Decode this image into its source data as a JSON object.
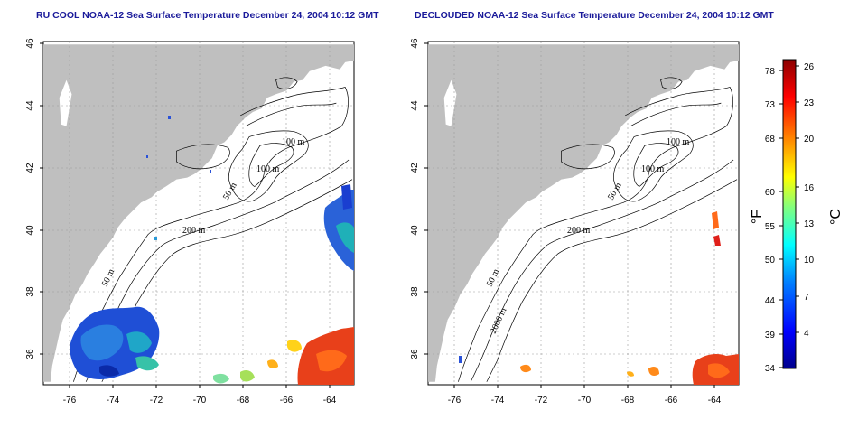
{
  "maps": [
    {
      "title": "RU COOL NOAA-12 Sea Surface Temperature December 24, 2004 10:12 GMT",
      "lat_ticks": [
        "46",
        "44",
        "42",
        "40",
        "38",
        "36"
      ],
      "lon_ticks": [
        "-76",
        "-74",
        "-72",
        "-70",
        "-68",
        "-66",
        "-64"
      ],
      "contour_labels": [
        "100 m",
        "100 m",
        "50 m",
        "200 m",
        "50 m"
      ]
    },
    {
      "title": "DECLOUDED NOAA-12 Sea Surface Temperature December 24, 2004 10:12 GMT",
      "lat_ticks": [
        "46",
        "44",
        "42",
        "40",
        "38",
        "36"
      ],
      "lon_ticks": [
        "-76",
        "-74",
        "-72",
        "-70",
        "-68",
        "-66",
        "-64"
      ],
      "contour_labels": [
        "100 m",
        "100 m",
        "50 m",
        "200 m",
        "50 m",
        "2000 m"
      ]
    }
  ],
  "colorbar": {
    "fahrenheit_ticks": [
      "78",
      "73",
      "68",
      "60",
      "55",
      "50",
      "44",
      "39",
      "34"
    ],
    "celsius_ticks": [
      "26",
      "23",
      "20",
      "16",
      "13",
      "10",
      "7",
      "4"
    ],
    "fahrenheit_unit": "°F",
    "celsius_unit": "°C",
    "colors": [
      "#00008b",
      "#0000ff",
      "#0080ff",
      "#00ffff",
      "#80ff80",
      "#ffff00",
      "#ff8000",
      "#ff0000",
      "#8b0000"
    ]
  },
  "colors": {
    "land": "#bfbfbf",
    "ocean": "#ffffff",
    "cold": "#1f3fd6",
    "warm": "#e8401a"
  }
}
